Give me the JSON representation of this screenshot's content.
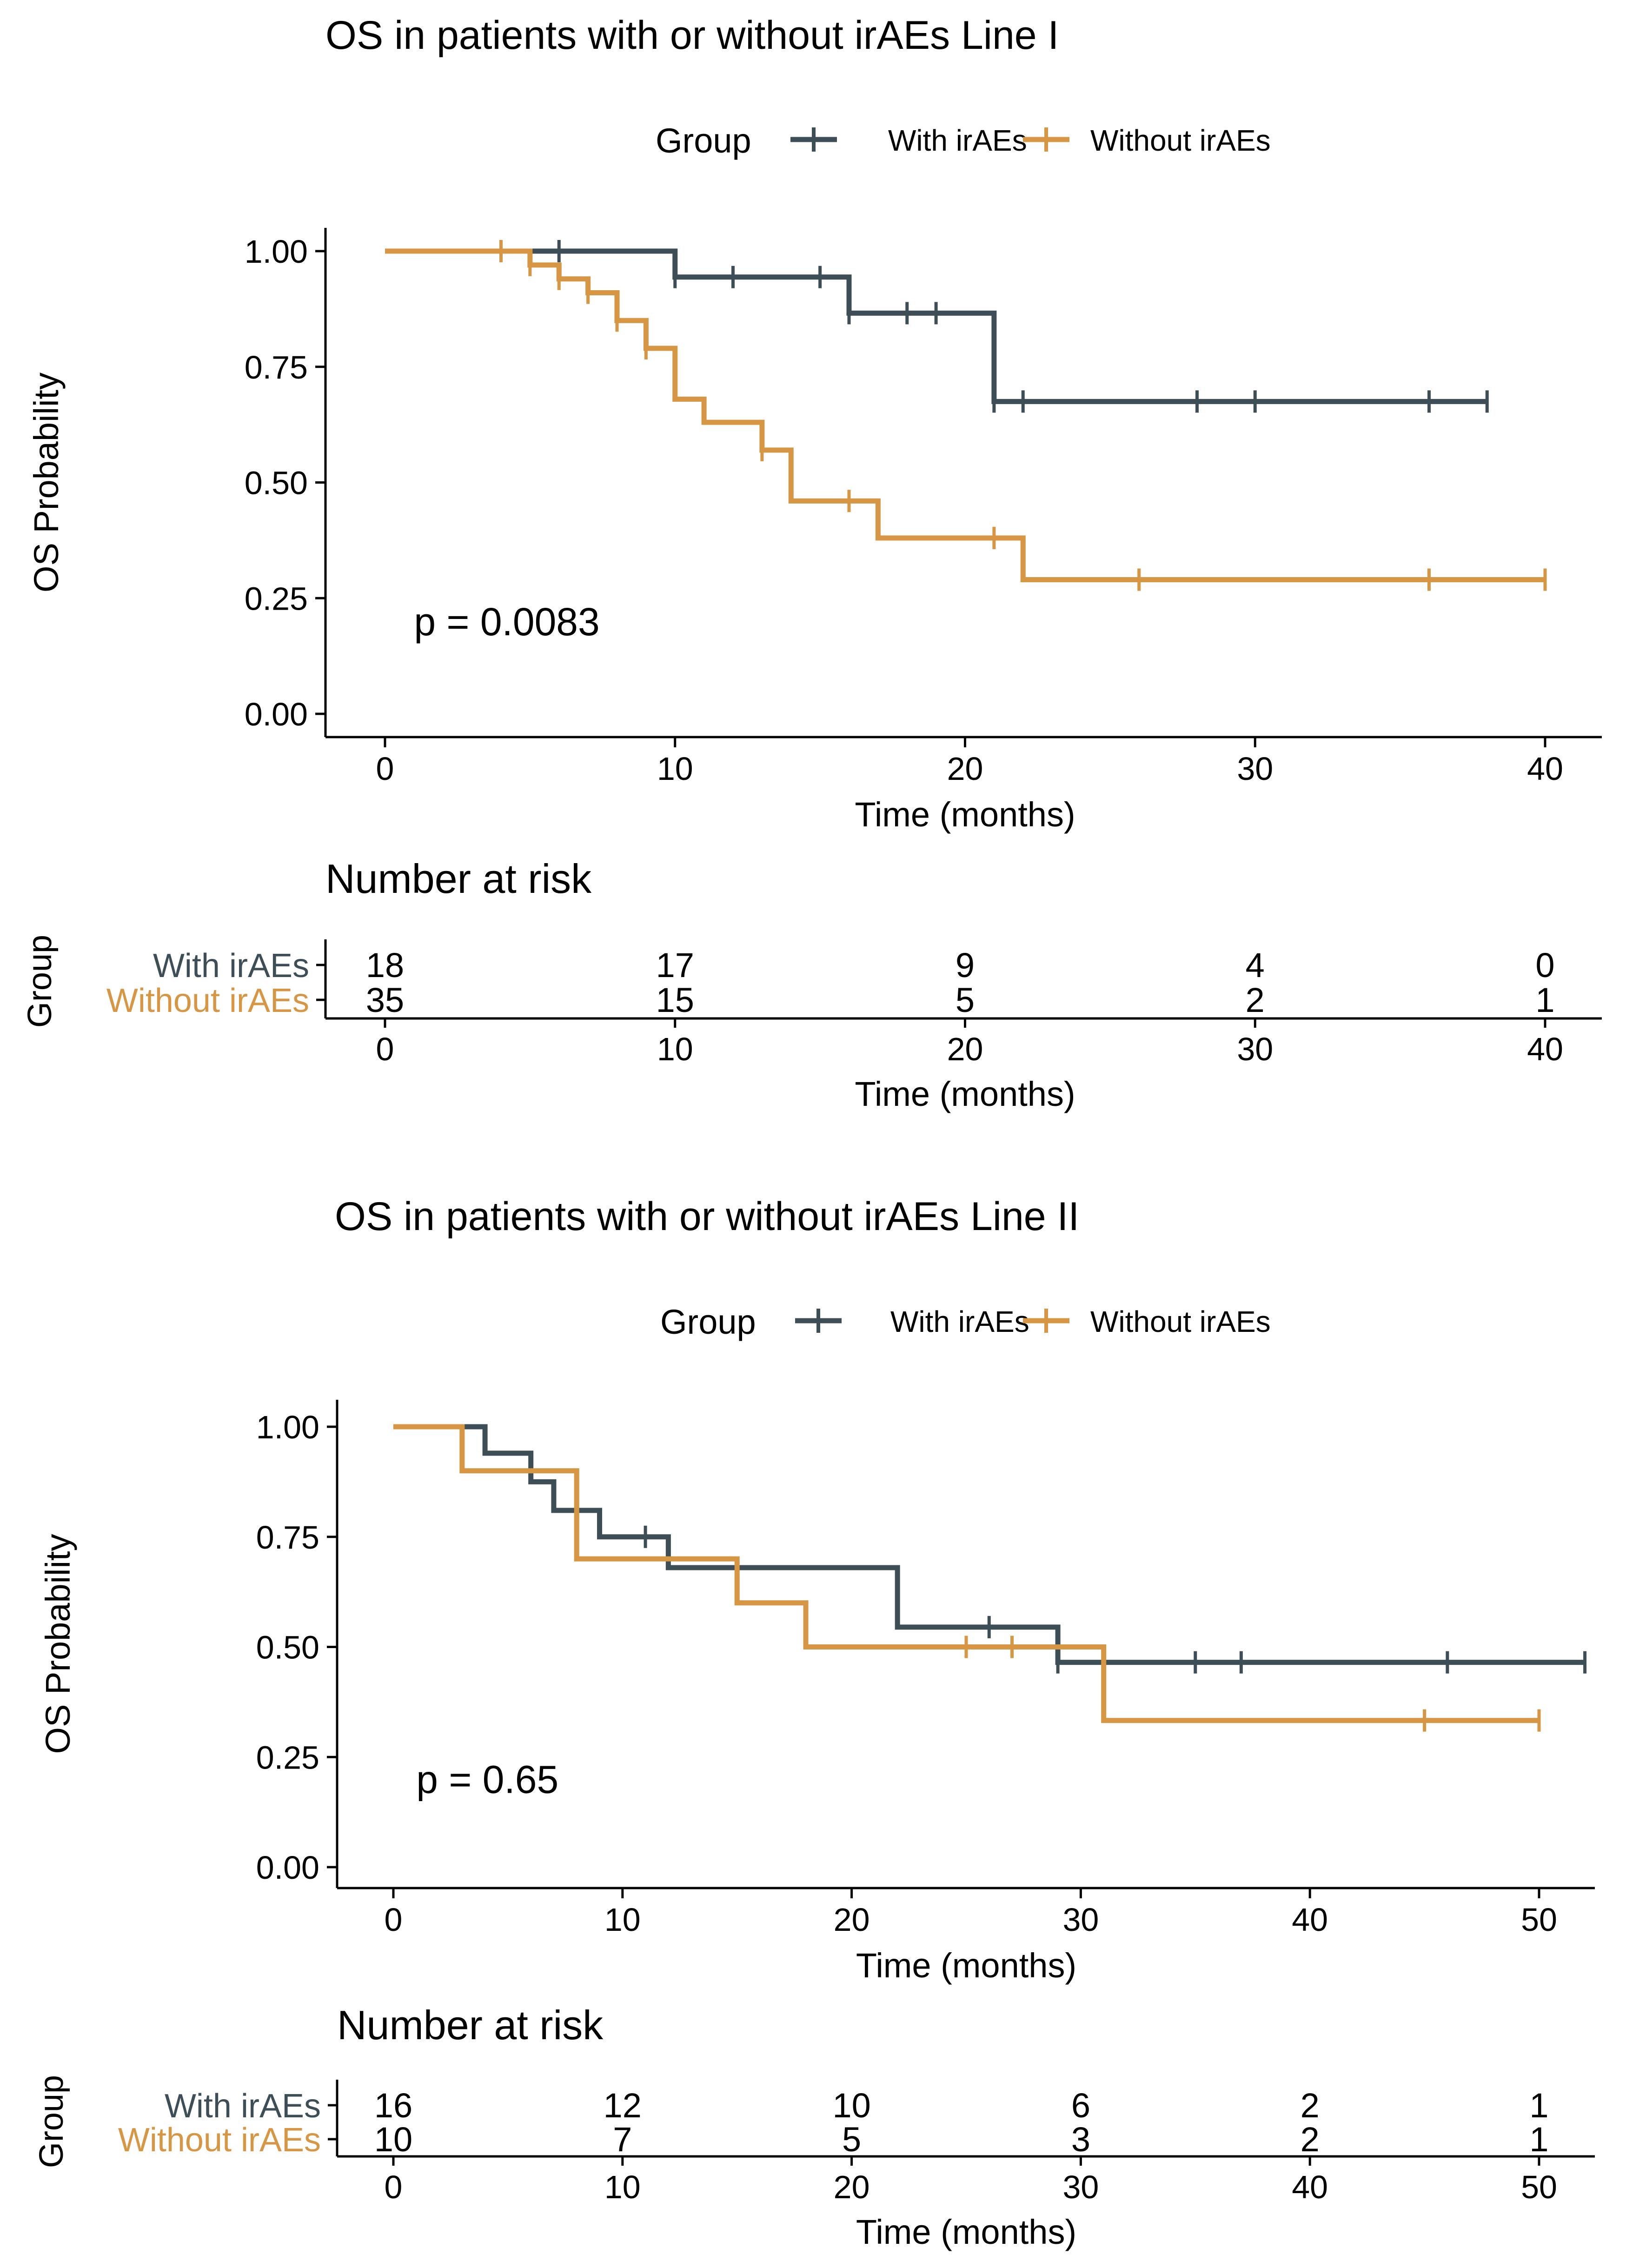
{
  "colors": {
    "with": "#3D4E57",
    "without": "#D69643",
    "axis": "#000000"
  },
  "chart_data": [
    {
      "type": "km-survival",
      "title": "OS in patients with or without irAEs Line I",
      "legend": {
        "title": "Group",
        "labels": [
          "With irAEs",
          "Without irAEs"
        ],
        "position": "top"
      },
      "xlabel": "Time (months)",
      "ylabel": "OS Probability",
      "xlim": [
        -2,
        42
      ],
      "ylim": [
        -0.05,
        1.05
      ],
      "xticks": [
        0,
        10,
        20,
        30,
        40
      ],
      "xtick_labels": [
        "0",
        "10",
        "20",
        "30",
        "40"
      ],
      "yticks": [
        0,
        0.25,
        0.5,
        0.75,
        1.0
      ],
      "ytick_labels": [
        "0.00",
        "0.25",
        "0.50",
        "0.75",
        "1.00"
      ],
      "pvalue": "p = 0.0083",
      "pvalue_pos": [
        1,
        0.2
      ],
      "series": [
        {
          "name": "With irAEs",
          "color_key": "with",
          "end": 38,
          "steps": [
            [
              0,
              1.0
            ],
            [
              10,
              0.944
            ],
            [
              16,
              0.866
            ],
            [
              21,
              0.675
            ]
          ],
          "censors": [
            6,
            10,
            12,
            15,
            16,
            18,
            19,
            21,
            22,
            28,
            30,
            36,
            38
          ]
        },
        {
          "name": "Without irAEs",
          "color_key": "without",
          "end": 40,
          "steps": [
            [
              0,
              1.0
            ],
            [
              5,
              0.97
            ],
            [
              6,
              0.94
            ],
            [
              7,
              0.91
            ],
            [
              8,
              0.85
            ],
            [
              9,
              0.79
            ],
            [
              10,
              0.68
            ],
            [
              11,
              0.63
            ],
            [
              13,
              0.57
            ],
            [
              14,
              0.46
            ],
            [
              17,
              0.38
            ],
            [
              22,
              0.29
            ]
          ],
          "censors": [
            4,
            5,
            6,
            7,
            8,
            9,
            13,
            16,
            21,
            26,
            36,
            40
          ]
        }
      ],
      "risk_table": {
        "title": "Number at risk",
        "ylabel": "Group",
        "xlabel": "Time (months)",
        "times": [
          0,
          10,
          20,
          30,
          40
        ],
        "time_labels": [
          "0",
          "10",
          "20",
          "30",
          "40"
        ],
        "rows": [
          {
            "name": "With irAEs",
            "color_key": "with",
            "values": [
              "18",
              "17",
              "9",
              "4",
              "0"
            ]
          },
          {
            "name": "Without irAEs",
            "color_key": "without",
            "values": [
              "35",
              "15",
              "5",
              "2",
              "1"
            ]
          }
        ]
      }
    },
    {
      "type": "km-survival",
      "title": "OS in patients with or without irAEs Line II",
      "legend": {
        "title": "Group",
        "labels": [
          "With irAEs",
          "Without irAEs"
        ],
        "position": "top"
      },
      "xlabel": "Time (months)",
      "ylabel": "OS Probability",
      "xlim": [
        -2.5,
        52.5
      ],
      "ylim": [
        -0.05,
        1.05
      ],
      "xticks": [
        0,
        10,
        20,
        30,
        40,
        50
      ],
      "xtick_labels": [
        "0",
        "10",
        "20",
        "30",
        "40",
        "50"
      ],
      "yticks": [
        0,
        0.25,
        0.5,
        0.75,
        1.0
      ],
      "ytick_labels": [
        "0.00",
        "0.25",
        "0.50",
        "0.75",
        "1.00"
      ],
      "pvalue": "p = 0.65",
      "pvalue_pos": [
        1,
        0.2
      ],
      "series": [
        {
          "name": "With irAEs",
          "color_key": "with",
          "end": 52,
          "steps": [
            [
              0,
              1.0
            ],
            [
              4,
              0.94
            ],
            [
              6,
              0.875
            ],
            [
              7,
              0.81
            ],
            [
              9,
              0.75
            ],
            [
              12,
              0.68
            ],
            [
              22,
              0.545
            ],
            [
              29,
              0.465
            ]
          ],
          "censors": [
            11,
            26,
            29,
            35,
            37,
            46,
            52
          ]
        },
        {
          "name": "Without irAEs",
          "color_key": "without",
          "end": 50,
          "steps": [
            [
              0,
              1.0
            ],
            [
              3,
              0.9
            ],
            [
              8,
              0.7
            ],
            [
              15,
              0.6
            ],
            [
              18,
              0.5
            ],
            [
              31,
              0.333
            ]
          ],
          "censors": [
            25,
            27,
            45,
            50
          ]
        }
      ],
      "risk_table": {
        "title": "Number at risk",
        "ylabel": "Group",
        "xlabel": "Time (months)",
        "times": [
          0,
          10,
          20,
          30,
          40,
          50
        ],
        "time_labels": [
          "0",
          "10",
          "20",
          "30",
          "40",
          "50"
        ],
        "rows": [
          {
            "name": "With irAEs",
            "color_key": "with",
            "values": [
              "16",
              "12",
              "10",
              "6",
              "2",
              "1"
            ]
          },
          {
            "name": "Without irAEs",
            "color_key": "without",
            "values": [
              "10",
              "7",
              "5",
              "3",
              "2",
              "1"
            ]
          }
        ]
      }
    }
  ]
}
